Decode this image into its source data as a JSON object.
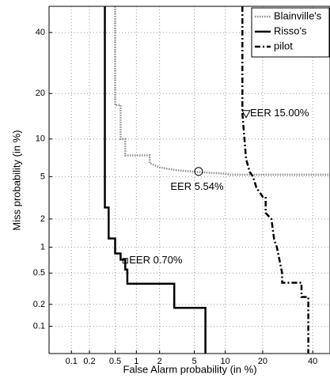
{
  "chart_data": {
    "type": "det",
    "xlabel": "False Alarm probability (in %)",
    "ylabel": "Miss probability (in %)",
    "xlim": [
      0.04,
      48
    ],
    "ylim": [
      0.04,
      50
    ],
    "xticks": [
      0.1,
      0.2,
      0.5,
      1,
      2,
      5,
      10,
      20,
      40
    ],
    "yticks": [
      0.1,
      0.2,
      0.5,
      1,
      2,
      5,
      10,
      20,
      40
    ],
    "grid": true,
    "legend": "upper right",
    "series": [
      {
        "name": "Blainville's",
        "color": "#8c8c8c",
        "linestyle": "dotted",
        "x": [
          0.5,
          0.5,
          0.6,
          0.6,
          0.7,
          0.7,
          1.5,
          1.5,
          2,
          3,
          5,
          10,
          11,
          48
        ],
        "values": [
          50,
          17,
          17,
          10,
          10,
          7.5,
          7.5,
          6.5,
          6,
          5.7,
          5.5,
          5.3,
          5.2,
          5.2
        ]
      },
      {
        "name": "Risso's",
        "color": "#000000",
        "linestyle": "solid",
        "x": [
          0.35,
          0.35,
          0.4,
          0.4,
          0.5,
          0.5,
          0.6,
          0.6,
          0.7,
          0.7,
          0.75,
          0.75,
          3,
          3,
          6.5,
          6.5
        ],
        "values": [
          50,
          2.6,
          2.6,
          1.25,
          1.25,
          0.85,
          0.85,
          0.72,
          0.72,
          0.55,
          0.55,
          0.37,
          0.37,
          0.18,
          0.18,
          0.04
        ]
      },
      {
        "name": "pilot",
        "color": "#000000",
        "linestyle": "dashdot",
        "x": [
          14,
          14,
          15,
          16,
          17,
          18,
          20,
          21,
          21,
          23,
          24,
          25,
          27,
          27,
          35,
          35,
          38,
          38
        ],
        "values": [
          50,
          15,
          7,
          5.5,
          5,
          4,
          3.3,
          3.3,
          2.3,
          2,
          1.2,
          1,
          0.5,
          0.38,
          0.38,
          0.25,
          0.25,
          0.04
        ]
      }
    ],
    "eer": [
      {
        "label": "EER 5.54%",
        "x": 5.54,
        "y": 5.54,
        "marker": "circle"
      },
      {
        "label": "EER 15.00%",
        "x": 15,
        "y": 15,
        "marker": "triangle"
      },
      {
        "label": "EER 0.70%",
        "x": 0.7,
        "y": 0.7,
        "marker": "square"
      }
    ]
  }
}
